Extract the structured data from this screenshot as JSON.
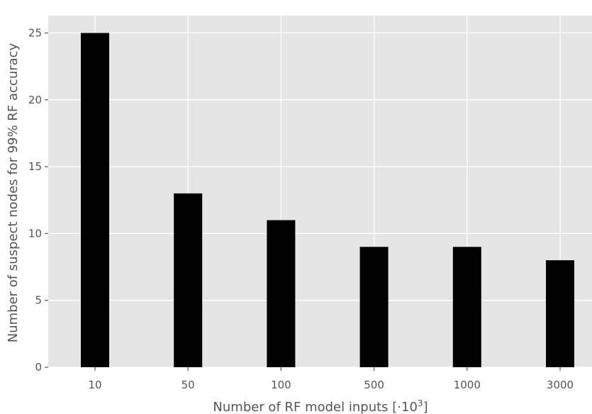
{
  "chart_data": {
    "type": "bar",
    "categories": [
      "10",
      "50",
      "100",
      "500",
      "1000",
      "3000"
    ],
    "values": [
      25,
      13,
      11,
      9,
      9,
      8
    ],
    "title": "",
    "xlabel": "Number of RF model inputs [·10",
    "xlabel_sup": "3",
    "xlabel_tail": "]",
    "ylabel": "Number of suspect nodes for 99% RF accuracy",
    "ylim": [
      0,
      26.3
    ],
    "yticks": [
      0,
      5,
      10,
      15,
      20,
      25
    ],
    "grid": true,
    "legend": "none",
    "colors": {
      "bar": "#000000",
      "plot_background": "#e5e5e5",
      "grid": "#ffffff",
      "text": "#555555"
    }
  }
}
